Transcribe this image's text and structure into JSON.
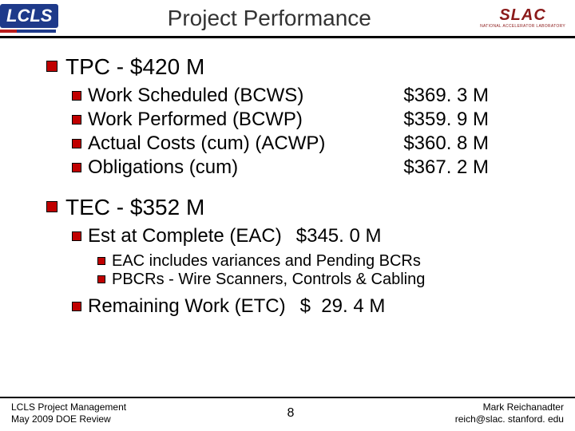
{
  "header": {
    "lcls_text": "LCLS",
    "title": "Project Performance",
    "slac_text": "SLAC",
    "slac_sub": "NATIONAL ACCELERATOR LABORATORY"
  },
  "tpc": {
    "heading": "TPC - $420 M",
    "rows": [
      {
        "label": "Work Scheduled (BCWS)",
        "value": "$369. 3 M"
      },
      {
        "label": "Work Performed (BCWP)",
        "value": "$359. 9 M"
      },
      {
        "label": "Actual Costs (cum) (ACWP)",
        "value": "$360. 8 M"
      },
      {
        "label": "Obligations (cum)",
        "value": "$367. 2 M"
      }
    ]
  },
  "tec": {
    "heading": "TEC - $352 M",
    "eac_label": "Est at Complete (EAC)",
    "eac_value": "$345. 0 M",
    "notes": [
      "EAC includes variances and Pending BCRs",
      "PBCRs - Wire Scanners, Controls & Cabling"
    ],
    "etc_label": "Remaining Work (ETC)",
    "etc_value": "$  29. 4 M"
  },
  "footer": {
    "left_line1": "LCLS Project Management",
    "left_line2": "May 2009 DOE Review",
    "page": "8",
    "right_line1": "Mark Reichanadter",
    "right_line2": "reich@slac. stanford. edu"
  },
  "colors": {
    "bullet": "#c00000",
    "text": "#000000",
    "header_border": "#000000"
  }
}
